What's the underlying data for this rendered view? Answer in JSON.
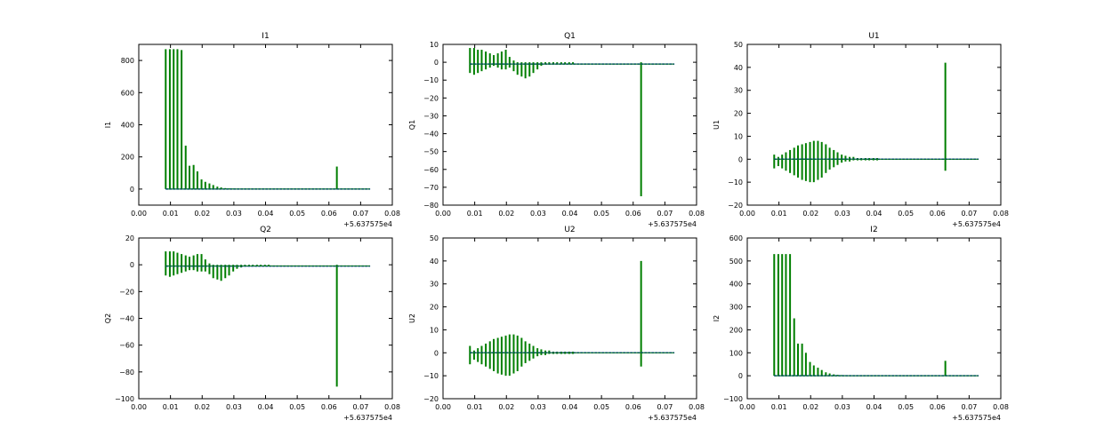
{
  "chart_data": [
    {
      "type": "line",
      "title": "I1",
      "ylabel": "I1",
      "xlabel": "",
      "x_offset_label": "+5.637575e4",
      "xlim": [
        0.0,
        0.08
      ],
      "ylim": [
        -100,
        900
      ],
      "x_ticks": [
        "0.00",
        "0.01",
        "0.02",
        "0.03",
        "0.04",
        "0.05",
        "0.06",
        "0.07",
        "0.08"
      ],
      "y_ticks": [
        "0",
        "200",
        "400",
        "600",
        "800"
      ],
      "y_tick_values": [
        0,
        200,
        400,
        600,
        800
      ],
      "x_range": [
        0.0085,
        0.073
      ],
      "series": [
        {
          "color": "#007f00",
          "x": [
            0.0085,
            0.0098,
            0.011,
            0.0122,
            0.0135,
            0.0148,
            0.016,
            0.0173,
            0.0185,
            0.0198,
            0.021,
            0.0223,
            0.0235,
            0.0248,
            0.026,
            0.0273,
            0.0285,
            0.0298,
            0.031,
            0.0323,
            0.0335,
            0.0348,
            0.036,
            0.0373,
            0.0385,
            0.0398,
            0.041,
            0.0625
          ],
          "y": [
            870,
            870,
            870,
            870,
            865,
            270,
            145,
            150,
            110,
            60,
            45,
            35,
            25,
            15,
            10,
            6,
            4,
            3,
            2,
            2,
            1,
            1,
            1,
            1,
            1,
            1,
            1,
            140
          ]
        },
        {
          "color": "#0000ff",
          "baseline": 0
        }
      ]
    },
    {
      "type": "line",
      "title": "Q1",
      "ylabel": "Q1",
      "xlabel": "",
      "x_offset_label": "+5.637575e4",
      "xlim": [
        0.0,
        0.08
      ],
      "ylim": [
        -80,
        10
      ],
      "x_ticks": [
        "0.00",
        "0.01",
        "0.02",
        "0.03",
        "0.04",
        "0.05",
        "0.06",
        "0.07",
        "0.08"
      ],
      "y_ticks": [
        "−80",
        "−70",
        "−60",
        "−50",
        "−40",
        "−30",
        "−20",
        "−10",
        "0",
        "10"
      ],
      "y_tick_values": [
        -80,
        -70,
        -60,
        -50,
        -40,
        -30,
        -20,
        -10,
        0,
        10
      ],
      "x_range": [
        0.0085,
        0.073
      ],
      "baseline": -1,
      "series": [
        {
          "color": "#007f00",
          "x": [
            0.0085,
            0.0098,
            0.011,
            0.0122,
            0.0135,
            0.0148,
            0.016,
            0.0173,
            0.0185,
            0.0198,
            0.021,
            0.0223,
            0.0235,
            0.0248,
            0.026,
            0.0273,
            0.0285,
            0.0298,
            0.031,
            0.0323,
            0.0335,
            0.0348,
            0.036,
            0.0373,
            0.0385,
            0.0398,
            0.041,
            0.0625
          ],
          "y_high": [
            8,
            8,
            7,
            7,
            6,
            5,
            4,
            5,
            6,
            7,
            3,
            1,
            0,
            0,
            0,
            0,
            0,
            0,
            0,
            0,
            0,
            0,
            0,
            0,
            0,
            0,
            0,
            0
          ],
          "y_low": [
            -6,
            -7,
            -6,
            -5,
            -4,
            -3,
            -2,
            -3,
            -4,
            -4,
            -3,
            -5,
            -7,
            -8,
            -9,
            -8,
            -6,
            -4,
            -2,
            -1,
            -1,
            -1,
            -1,
            -1,
            -1,
            -1,
            -1,
            -75
          ]
        },
        {
          "color": "#0000ff",
          "baseline": -1
        }
      ]
    },
    {
      "type": "line",
      "title": "U1",
      "ylabel": "U1",
      "xlabel": "",
      "x_offset_label": "+5.637575e4",
      "xlim": [
        0.0,
        0.08
      ],
      "ylim": [
        -20,
        50
      ],
      "x_ticks": [
        "0.00",
        "0.01",
        "0.02",
        "0.03",
        "0.04",
        "0.05",
        "0.06",
        "0.07",
        "0.08"
      ],
      "y_ticks": [
        "−20",
        "−10",
        "0",
        "10",
        "20",
        "30",
        "40",
        "50"
      ],
      "y_tick_values": [
        -20,
        -10,
        0,
        10,
        20,
        30,
        40,
        50
      ],
      "x_range": [
        0.0085,
        0.073
      ],
      "baseline": 0,
      "series": [
        {
          "color": "#007f00",
          "x": [
            0.0085,
            0.0098,
            0.011,
            0.0122,
            0.0135,
            0.0148,
            0.016,
            0.0173,
            0.0185,
            0.0198,
            0.021,
            0.0223,
            0.0235,
            0.0248,
            0.026,
            0.0273,
            0.0285,
            0.0298,
            0.031,
            0.0323,
            0.0335,
            0.0348,
            0.036,
            0.0373,
            0.0385,
            0.0398,
            0.041,
            0.0625
          ],
          "y_high": [
            2,
            1,
            2,
            3,
            4,
            5,
            6,
            6.5,
            7,
            7.5,
            8,
            8,
            7.5,
            6.5,
            5,
            4,
            3,
            2,
            1.5,
            1,
            1,
            0.5,
            0.5,
            0.5,
            0.5,
            0.5,
            0.5,
            42
          ],
          "y_low": [
            -4,
            -3,
            -4,
            -5,
            -6,
            -7,
            -8,
            -9,
            -9.5,
            -10,
            -10,
            -9,
            -8,
            -6,
            -4.5,
            -3.5,
            -2.5,
            -1.5,
            -1,
            -1,
            -0.5,
            -0.5,
            -0.5,
            -0.5,
            -0.5,
            -0.5,
            -0.5,
            -5
          ]
        },
        {
          "color": "#0000ff",
          "baseline": 0
        }
      ]
    },
    {
      "type": "line",
      "title": "Q2",
      "ylabel": "Q2",
      "xlabel": "",
      "x_offset_label": "+5.637575e4",
      "xlim": [
        0.0,
        0.08
      ],
      "ylim": [
        -100,
        20
      ],
      "x_ticks": [
        "0.00",
        "0.01",
        "0.02",
        "0.03",
        "0.04",
        "0.05",
        "0.06",
        "0.07",
        "0.08"
      ],
      "y_ticks": [
        "−100",
        "−80",
        "−60",
        "−40",
        "−20",
        "0",
        "20"
      ],
      "y_tick_values": [
        -100,
        -80,
        -60,
        -40,
        -20,
        0,
        20
      ],
      "x_range": [
        0.0085,
        0.073
      ],
      "baseline": -1,
      "series": [
        {
          "color": "#007f00",
          "x": [
            0.0085,
            0.0098,
            0.011,
            0.0122,
            0.0135,
            0.0148,
            0.016,
            0.0173,
            0.0185,
            0.0198,
            0.021,
            0.0223,
            0.0235,
            0.0248,
            0.026,
            0.0273,
            0.0285,
            0.0298,
            0.031,
            0.0323,
            0.0335,
            0.0348,
            0.036,
            0.0373,
            0.0385,
            0.0398,
            0.041,
            0.0625
          ],
          "y_high": [
            10,
            10,
            10,
            9,
            8,
            7,
            6,
            7,
            8,
            8,
            4,
            1,
            0,
            0,
            0,
            0,
            0,
            0,
            0,
            0,
            0,
            0,
            0,
            0,
            0,
            0,
            0,
            0
          ],
          "y_low": [
            -8,
            -9,
            -8,
            -7,
            -6,
            -5,
            -4,
            -4,
            -5,
            -5,
            -5,
            -7,
            -10,
            -11,
            -12,
            -10,
            -8,
            -5,
            -3,
            -2,
            -1,
            -1,
            -1,
            -1,
            -1,
            -1,
            -1,
            -91
          ]
        },
        {
          "color": "#0000ff",
          "baseline": -1
        }
      ]
    },
    {
      "type": "line",
      "title": "U2",
      "ylabel": "U2",
      "xlabel": "",
      "x_offset_label": "+5.637575e4",
      "xlim": [
        0.0,
        0.08
      ],
      "ylim": [
        -20,
        50
      ],
      "x_ticks": [
        "0.00",
        "0.01",
        "0.02",
        "0.03",
        "0.04",
        "0.05",
        "0.06",
        "0.07",
        "0.08"
      ],
      "y_ticks": [
        "−20",
        "−10",
        "0",
        "10",
        "20",
        "30",
        "40",
        "50"
      ],
      "y_tick_values": [
        -20,
        -10,
        0,
        10,
        20,
        30,
        40,
        50
      ],
      "x_range": [
        0.0085,
        0.073
      ],
      "baseline": 0,
      "series": [
        {
          "color": "#007f00",
          "x": [
            0.0085,
            0.0098,
            0.011,
            0.0122,
            0.0135,
            0.0148,
            0.016,
            0.0173,
            0.0185,
            0.0198,
            0.021,
            0.0223,
            0.0235,
            0.0248,
            0.026,
            0.0273,
            0.0285,
            0.0298,
            0.031,
            0.0323,
            0.0335,
            0.0348,
            0.036,
            0.0373,
            0.0385,
            0.0398,
            0.041,
            0.0625
          ],
          "y_high": [
            3,
            1,
            2,
            3,
            4,
            5,
            6,
            6.5,
            7,
            7.5,
            8,
            8,
            7.5,
            6.5,
            5,
            4,
            3,
            2,
            1.5,
            1,
            1,
            0.5,
            0.5,
            0.5,
            0.5,
            0.5,
            0.5,
            40
          ],
          "y_low": [
            -5,
            -3,
            -4,
            -5,
            -6,
            -7,
            -8,
            -9,
            -9.5,
            -10,
            -10,
            -9,
            -8,
            -6,
            -4.5,
            -3.5,
            -2.5,
            -1.5,
            -1,
            -1,
            -0.5,
            -0.5,
            -0.5,
            -0.5,
            -0.5,
            -0.5,
            -0.5,
            -6
          ]
        },
        {
          "color": "#0000ff",
          "baseline": 0
        }
      ]
    },
    {
      "type": "line",
      "title": "I2",
      "ylabel": "I2",
      "xlabel": "",
      "x_offset_label": "+5.637575e4",
      "xlim": [
        0.0,
        0.08
      ],
      "ylim": [
        -100,
        600
      ],
      "x_ticks": [
        "0.00",
        "0.01",
        "0.02",
        "0.03",
        "0.04",
        "0.05",
        "0.06",
        "0.07",
        "0.08"
      ],
      "y_ticks": [
        "−100",
        "0",
        "100",
        "200",
        "300",
        "400",
        "500",
        "600"
      ],
      "y_tick_values": [
        -100,
        0,
        100,
        200,
        300,
        400,
        500,
        600
      ],
      "x_range": [
        0.0085,
        0.073
      ],
      "series": [
        {
          "color": "#007f00",
          "x": [
            0.0085,
            0.0098,
            0.011,
            0.0122,
            0.0135,
            0.0148,
            0.016,
            0.0173,
            0.0185,
            0.0198,
            0.021,
            0.0223,
            0.0235,
            0.0248,
            0.026,
            0.0273,
            0.0285,
            0.0298,
            0.031,
            0.0323,
            0.0335,
            0.0348,
            0.036,
            0.0373,
            0.0385,
            0.0398,
            0.041,
            0.0625
          ],
          "y": [
            530,
            530,
            530,
            530,
            530,
            250,
            140,
            140,
            100,
            60,
            45,
            35,
            25,
            15,
            10,
            6,
            4,
            3,
            2,
            2,
            1,
            1,
            1,
            1,
            1,
            1,
            1,
            65
          ]
        },
        {
          "color": "#0000ff",
          "baseline": 0
        }
      ]
    }
  ]
}
